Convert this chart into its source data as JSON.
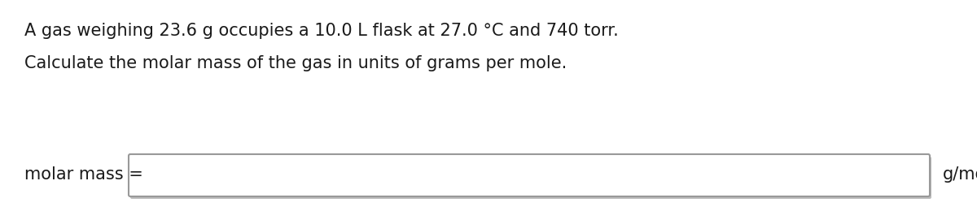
{
  "line1": "A gas weighing 23.6 g occupies a 10.0 L flask at 27.0 °C and 740 torr.",
  "line2": "Calculate the molar mass of the gas in units of grams per mole.",
  "label_text": "molar mass =",
  "unit_text": "g/mol",
  "bg_color": "#ffffff",
  "text_color": "#1a1a1a",
  "box_edge_color": "#999999",
  "box_face_color": "#ffffff",
  "font_size": 15,
  "fig_width": 12.0,
  "fig_height": 2.76,
  "dpi": 100
}
